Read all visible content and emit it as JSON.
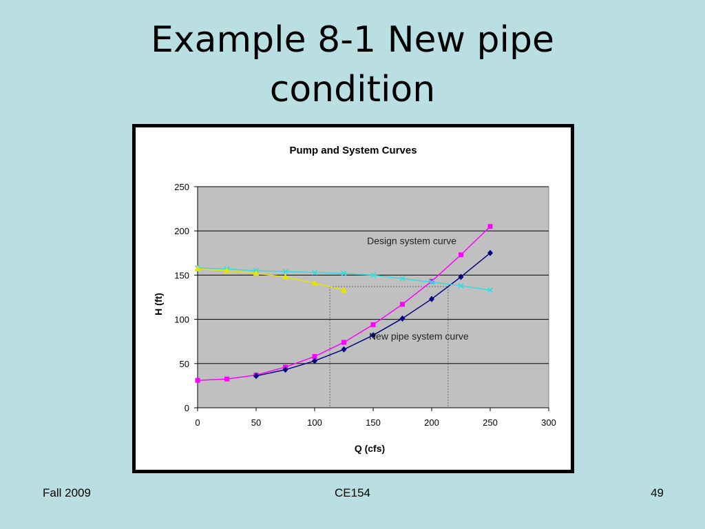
{
  "slide": {
    "title_lines": [
      "Example 8-1 New pipe",
      "condition"
    ],
    "footer_left": "Fall 2009",
    "footer_center": "CE154",
    "footer_right": "49"
  },
  "chart_data": {
    "type": "line",
    "title": "Pump and System Curves",
    "xlabel": "Q (cfs)",
    "ylabel": "H (ft)",
    "xlim": [
      0,
      300
    ],
    "ylim": [
      0,
      250
    ],
    "xticks": [
      0,
      50,
      100,
      150,
      200,
      250,
      300
    ],
    "yticks": [
      0,
      50,
      100,
      150,
      200,
      250
    ],
    "grid": "horizontal",
    "plot_background": "#c0c0c0",
    "series": [
      {
        "color": "#ff00ff",
        "marker": "square",
        "x": [
          0,
          25,
          50,
          75,
          100,
          125,
          150,
          175,
          200,
          225,
          250
        ],
        "y": [
          31,
          32.5,
          37,
          46,
          58,
          74,
          94,
          117,
          143,
          173,
          205
        ]
      },
      {
        "color": "#000080",
        "marker": "diamond",
        "x": [
          50,
          75,
          100,
          125,
          150,
          175,
          200,
          225,
          250
        ],
        "y": [
          36,
          43,
          53,
          66,
          82,
          101,
          123,
          148,
          175
        ]
      },
      {
        "color": "#33dddd",
        "marker": "x",
        "x": [
          0,
          25,
          50,
          75,
          100,
          125,
          150,
          175,
          200,
          225,
          250
        ],
        "y": [
          158,
          157,
          155,
          154,
          153,
          152,
          150,
          146,
          142,
          138,
          133
        ]
      },
      {
        "color": "#e5e500",
        "marker": "triangle",
        "x": [
          0,
          25,
          50,
          75,
          100,
          125
        ],
        "y": [
          157,
          155,
          152,
          148,
          141,
          133
        ]
      }
    ],
    "annotations": [
      {
        "text": "Design system curve",
        "x": 183,
        "y": 185
      },
      {
        "text": "New pipe system curve",
        "x": 189,
        "y": 77
      }
    ],
    "guides": [
      {
        "x": 113,
        "y": 137
      },
      {
        "x": 214,
        "y": 137
      }
    ]
  }
}
